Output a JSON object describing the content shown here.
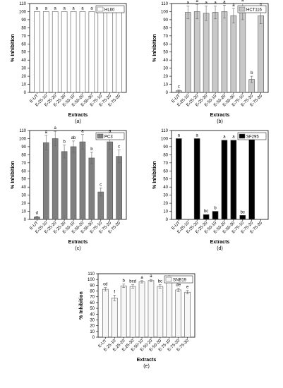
{
  "chart_data": [
    {
      "type": "bar",
      "panel_label": "(a)",
      "legend": "HL60",
      "legend_position": "top-right",
      "xlabel": "Extracts",
      "ylabel": "% Inhibition",
      "ylim": [
        0,
        110
      ],
      "yticks": [
        0,
        10,
        20,
        30,
        40,
        50,
        60,
        70,
        80,
        90,
        100,
        110
      ],
      "bar_color": "#ffffff",
      "categories": [
        "E-UT",
        "E-25-10",
        "E-25-20",
        "E-25-30",
        "E-50-10",
        "E-50-20",
        "E-50-30",
        "E-75-10",
        "E-75-20",
        "E-75-30"
      ],
      "values": [
        100,
        100,
        100,
        100,
        100,
        100,
        100,
        100,
        100,
        100
      ],
      "errors": [
        0,
        0,
        0,
        0,
        0,
        0,
        0,
        0,
        0,
        0
      ],
      "letters": [
        "a",
        "a",
        "a",
        "a",
        "a",
        "a",
        "a",
        "a",
        "a",
        "a"
      ]
    },
    {
      "type": "bar",
      "panel_label": "(b)",
      "legend": "HCT116",
      "legend_position": "top-right",
      "xlabel": "Extracts",
      "ylabel": "% Inhibition",
      "ylim": [
        0,
        110
      ],
      "yticks": [
        0,
        10,
        20,
        30,
        40,
        50,
        60,
        70,
        80,
        90,
        100,
        110
      ],
      "bar_color": "#c8c8c8",
      "categories": [
        "E-UT",
        "E-25-10",
        "E-25-20",
        "E-25-30",
        "E-50-10",
        "E-50-20",
        "E-50-30",
        "E-75-10",
        "E-75-20",
        "E-75-30"
      ],
      "values": [
        2,
        99,
        100,
        98,
        99,
        100,
        95,
        100,
        16,
        95
      ],
      "errors": [
        1,
        8,
        9,
        9,
        8,
        8,
        9,
        10,
        4,
        10
      ],
      "letters": [
        "c",
        "a",
        "a",
        "a",
        "a",
        "a",
        "a",
        "a",
        "b",
        "c"
      ]
    },
    {
      "type": "bar",
      "panel_label": "(c)",
      "legend": "PC3",
      "legend_position": "top-right",
      "xlabel": "Extracts",
      "ylabel": "% Inhibition",
      "ylim": [
        0,
        110
      ],
      "yticks": [
        0,
        10,
        20,
        30,
        40,
        50,
        60,
        70,
        80,
        90,
        100,
        110
      ],
      "bar_color": "#7f7f7f",
      "categories": [
        "E-UT",
        "E-25-10",
        "E-25-20",
        "E-25-30",
        "E-50-10",
        "E-50-20",
        "E-50-30",
        "E-75-10",
        "E-75-20",
        "E-75-30"
      ],
      "values": [
        3,
        95,
        100,
        84,
        90,
        96,
        76,
        34,
        96,
        78
      ],
      "errors": [
        1,
        9,
        9,
        8,
        7,
        9,
        7,
        5,
        9,
        8
      ],
      "letters": [
        "d",
        "a",
        "a",
        "b",
        "ab",
        "a",
        "b",
        "c",
        "a",
        "c"
      ]
    },
    {
      "type": "bar",
      "panel_label": "(d)",
      "legend": "SF295",
      "legend_position": "top-right",
      "xlabel": "Extracts",
      "ylabel": "% Inhibition",
      "ylim": [
        0,
        110
      ],
      "yticks": [
        0,
        10,
        20,
        30,
        40,
        50,
        60,
        70,
        80,
        90,
        100,
        110
      ],
      "bar_color": "#000000",
      "categories": [
        "E-UT",
        "E-25-10",
        "E-25-20",
        "E-25-30",
        "E-50-10",
        "E-50-20",
        "E-50-30",
        "E-75-10",
        "E-75-20",
        "E-75-30"
      ],
      "values": [
        100,
        0,
        100,
        6,
        10,
        98,
        98,
        5,
        99,
        0
      ],
      "errors": [
        0,
        0,
        0,
        0,
        0,
        0,
        0,
        0,
        0,
        0
      ],
      "letters": [
        "a",
        "",
        "a",
        "bc",
        "b",
        "a",
        "a",
        "bc",
        "a",
        ""
      ]
    },
    {
      "type": "bar",
      "panel_label": "(e)",
      "legend": "SNB19",
      "legend_position": "top-right",
      "xlabel": "Extracts",
      "ylabel": "% Inhibition",
      "ylim": [
        0,
        110
      ],
      "yticks": [
        0,
        10,
        20,
        30,
        40,
        50,
        60,
        70,
        80,
        90,
        100,
        110
      ],
      "bar_color": "#f7f7f7",
      "categories": [
        "E-UT",
        "E-25-10",
        "E-25-20",
        "E-25-30",
        "E-50-10",
        "E-50-20",
        "E-50-30",
        "E-75-10",
        "E-75-20",
        "E-75-30"
      ],
      "values": [
        83,
        68,
        89,
        88,
        96,
        98,
        88,
        97,
        82,
        78
      ],
      "errors": [
        3,
        5,
        3,
        3,
        2,
        2,
        3,
        2,
        3,
        3
      ],
      "letters": [
        "cd",
        "f",
        "b",
        "bcd",
        "a",
        "a",
        "bc",
        "a",
        "de",
        "e"
      ]
    }
  ]
}
